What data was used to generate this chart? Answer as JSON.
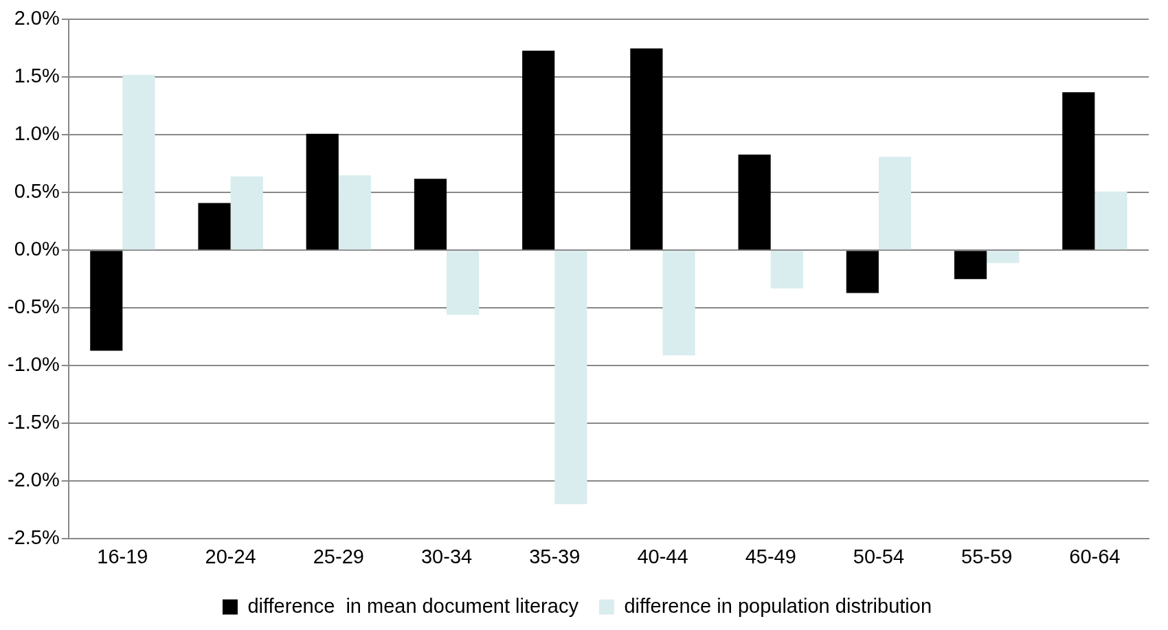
{
  "chart_data": {
    "type": "bar",
    "categories": [
      "16-19",
      "20-24",
      "25-29",
      "30-34",
      "35-39",
      "40-44",
      "45-49",
      "50-54",
      "55-59",
      "60-64"
    ],
    "series": [
      {
        "name": "difference  in mean document literacy",
        "color": "#000000",
        "values": [
          -0.87,
          0.41,
          1.01,
          0.62,
          1.73,
          1.75,
          0.83,
          -0.37,
          -0.25,
          1.37
        ]
      },
      {
        "name": "difference in population distribution",
        "color": "#d9ecee",
        "values": [
          1.52,
          0.64,
          0.65,
          -0.56,
          -2.2,
          -0.91,
          -0.33,
          0.81,
          -0.11,
          0.51
        ]
      }
    ],
    "ylim": [
      -2.5,
      2.0
    ],
    "yticks": [
      {
        "value": -2.5,
        "label": "-2.5%"
      },
      {
        "value": -2.0,
        "label": "-2.0%"
      },
      {
        "value": -1.5,
        "label": "-1.5%"
      },
      {
        "value": -1.0,
        "label": "-1.0%"
      },
      {
        "value": -0.5,
        "label": "-0.5%"
      },
      {
        "value": 0,
        "label": "0.0%"
      },
      {
        "value": 0.5,
        "label": "0.5%"
      },
      {
        "value": 1.0,
        "label": "1.0%"
      },
      {
        "value": 1.5,
        "label": "1.5%"
      },
      {
        "value": 2.0,
        "label": "2.0%"
      }
    ],
    "grid": "y",
    "legend": "bottom"
  }
}
